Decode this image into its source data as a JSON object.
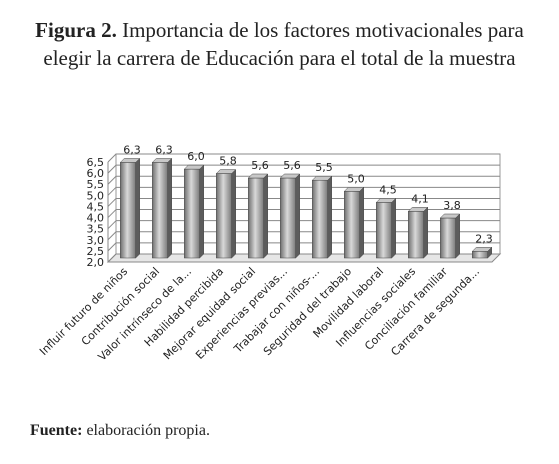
{
  "title_label": "Figura 2.",
  "source_label": "Fuente:",
  "source": "elaboración propia.",
  "chart_data": {
    "type": "bar3d",
    "title": "Importancia de los factores motivacionales para elegir la carrera de Educación para el total de la muestra",
    "categories": [
      "Influir futuro de niños",
      "Contribución social",
      "Valor intrínseco de la...",
      "Habilidad percibida",
      "Mejorar equidad social",
      "Experiencias previas...",
      "Trabajar con niños-...",
      "Seguridad del trabajo",
      "Movilidad laboral",
      "Influencias sociales",
      "Conciliación familiar",
      "Carrera de segunda..."
    ],
    "values": [
      6.3,
      6.3,
      6.0,
      5.8,
      5.6,
      5.6,
      5.5,
      5.0,
      4.5,
      4.1,
      3.8,
      2.3
    ],
    "value_labels": [
      "6,3",
      "6,3",
      "6,0",
      "5,8",
      "5,6",
      "5,6",
      "5,5",
      "5,0",
      "4,5",
      "4,1",
      "3,8",
      "2,3"
    ],
    "color": "#9a9a9a",
    "ylim": [
      2.0,
      6.5
    ],
    "yticks": [
      {
        "value": 2.0,
        "label": "2,0"
      },
      {
        "value": 2.5,
        "label": "2,5"
      },
      {
        "value": 3.0,
        "label": "3,0"
      },
      {
        "value": 3.5,
        "label": "3,5"
      },
      {
        "value": 4.0,
        "label": "4,0"
      },
      {
        "value": 4.5,
        "label": "4,5"
      },
      {
        "value": 5.0,
        "label": "5,0"
      },
      {
        "value": 5.5,
        "label": "5,5"
      },
      {
        "value": 6.0,
        "label": "6,0"
      },
      {
        "value": 6.5,
        "label": "6,5"
      }
    ],
    "grid": true
  }
}
